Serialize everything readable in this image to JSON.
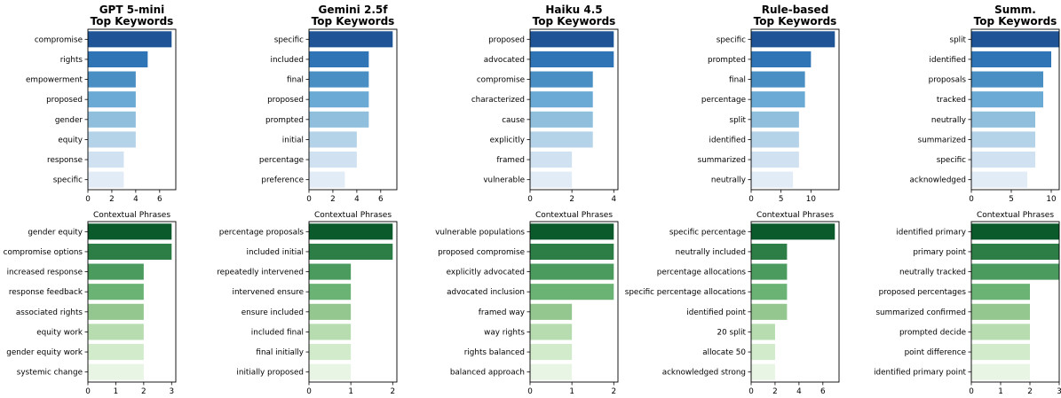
{
  "chart_data": [
    {
      "type": "bar",
      "orientation": "horizontal",
      "title": "GPT 5-mini\nTop Keywords",
      "palette": "blues",
      "categories": [
        "compromise",
        "rights",
        "empowerment",
        "proposed",
        "gender",
        "equity",
        "response",
        "specific"
      ],
      "values": [
        7,
        5,
        4,
        4,
        4,
        4,
        3,
        3
      ],
      "xlim": [
        0,
        7.35
      ],
      "xticks": [
        0,
        2,
        4,
        6
      ],
      "colors": [
        "#1f5597",
        "#2f74b5",
        "#4a8fc4",
        "#6aaad4",
        "#8fbfdd",
        "#b4d3e8",
        "#d0e1f2",
        "#e2ecf7"
      ]
    },
    {
      "type": "bar",
      "orientation": "horizontal",
      "title": "Gemini 2.5f\nTop Keywords",
      "palette": "blues",
      "categories": [
        "specific",
        "included",
        "final",
        "proposed",
        "prompted",
        "initial",
        "percentage",
        "preference"
      ],
      "values": [
        7,
        5,
        5,
        5,
        5,
        4,
        4,
        3
      ],
      "xlim": [
        0,
        7.35
      ],
      "xticks": [
        0,
        2,
        4,
        6
      ],
      "colors": [
        "#1f5597",
        "#2f74b5",
        "#4a8fc4",
        "#6aaad4",
        "#8fbfdd",
        "#b4d3e8",
        "#d0e1f2",
        "#e2ecf7"
      ]
    },
    {
      "type": "bar",
      "orientation": "horizontal",
      "title": "Haiku 4.5\nTop Keywords",
      "palette": "blues",
      "categories": [
        "proposed",
        "advocated",
        "compromise",
        "characterized",
        "cause",
        "explicitly",
        "framed",
        "vulnerable"
      ],
      "values": [
        4,
        4,
        3,
        3,
        3,
        3,
        2,
        2
      ],
      "xlim": [
        0,
        4.2
      ],
      "xticks": [
        0,
        2,
        4
      ],
      "colors": [
        "#1f5597",
        "#2f74b5",
        "#4a8fc4",
        "#6aaad4",
        "#8fbfdd",
        "#b4d3e8",
        "#d0e1f2",
        "#e2ecf7"
      ]
    },
    {
      "type": "bar",
      "orientation": "horizontal",
      "title": "Rule-based\nTop Keywords",
      "palette": "blues",
      "categories": [
        "specific",
        "prompted",
        "final",
        "percentage",
        "split",
        "identified",
        "summarized",
        "neutrally"
      ],
      "values": [
        14,
        10,
        9,
        9,
        8,
        8,
        8,
        7
      ],
      "xlim": [
        0,
        14.7
      ],
      "xticks": [
        0,
        5,
        10
      ],
      "colors": [
        "#1f5597",
        "#2f74b5",
        "#4a8fc4",
        "#6aaad4",
        "#8fbfdd",
        "#b4d3e8",
        "#d0e1f2",
        "#e2ecf7"
      ]
    },
    {
      "type": "bar",
      "orientation": "horizontal",
      "title": "Summ.\nTop Keywords",
      "palette": "blues",
      "categories": [
        "split",
        "identified",
        "proposals",
        "tracked",
        "neutrally",
        "summarized",
        "specific",
        "acknowledged"
      ],
      "values": [
        11,
        10,
        9,
        9,
        8,
        8,
        8,
        7
      ],
      "xlim": [
        0,
        11
      ],
      "xticks": [
        0,
        5,
        10
      ],
      "colors": [
        "#1f5597",
        "#2f74b5",
        "#4a8fc4",
        "#6aaad4",
        "#8fbfdd",
        "#b4d3e8",
        "#d0e1f2",
        "#e2ecf7"
      ]
    },
    {
      "type": "bar",
      "orientation": "horizontal",
      "title": "Contextual Phrases",
      "palette": "greens",
      "categories": [
        "gender equity",
        "compromise options",
        "increased response",
        "response feedback",
        "associated rights",
        "equity work",
        "gender equity work",
        "systemic change"
      ],
      "values": [
        3,
        3,
        2,
        2,
        2,
        2,
        2,
        2
      ],
      "xlim": [
        0,
        3.15
      ],
      "xticks": [
        0,
        1,
        2,
        3
      ],
      "colors": [
        "#0b5a2b",
        "#2d7d46",
        "#4a9b5d",
        "#6bb374",
        "#93c78f",
        "#b6dcaf",
        "#d2ebcb",
        "#e8f5e4"
      ]
    },
    {
      "type": "bar",
      "orientation": "horizontal",
      "title": "Contextual Phrases",
      "palette": "greens",
      "categories": [
        "percentage proposals",
        "included initial",
        "repeatedly intervened",
        "intervened ensure",
        "ensure included",
        "included final",
        "final initially",
        "initially proposed"
      ],
      "values": [
        2,
        2,
        1,
        1,
        1,
        1,
        1,
        1
      ],
      "xlim": [
        0,
        2.1
      ],
      "xticks": [
        0,
        1,
        2
      ],
      "colors": [
        "#0b5a2b",
        "#2d7d46",
        "#4a9b5d",
        "#6bb374",
        "#93c78f",
        "#b6dcaf",
        "#d2ebcb",
        "#e8f5e4"
      ]
    },
    {
      "type": "bar",
      "orientation": "horizontal",
      "title": "Contextual Phrases",
      "palette": "greens",
      "categories": [
        "vulnerable populations",
        "proposed compromise",
        "explicitly advocated",
        "advocated inclusion",
        "framed way",
        "way rights",
        "rights balanced",
        "balanced approach"
      ],
      "values": [
        2,
        2,
        2,
        2,
        1,
        1,
        1,
        1
      ],
      "xlim": [
        0,
        2.1
      ],
      "xticks": [
        0,
        1,
        2
      ],
      "colors": [
        "#0b5a2b",
        "#2d7d46",
        "#4a9b5d",
        "#6bb374",
        "#93c78f",
        "#b6dcaf",
        "#d2ebcb",
        "#e8f5e4"
      ]
    },
    {
      "type": "bar",
      "orientation": "horizontal",
      "title": "Contextual Phrases",
      "palette": "greens",
      "categories": [
        "specific percentage",
        "neutrally included",
        "percentage allocations",
        "specific percentage allocations",
        "identified point",
        "20 split",
        "allocate 50",
        "acknowledged strong"
      ],
      "values": [
        7,
        3,
        3,
        3,
        3,
        2,
        2,
        2
      ],
      "xlim": [
        0,
        7.35
      ],
      "xticks": [
        0,
        2,
        4,
        6
      ],
      "colors": [
        "#0b5a2b",
        "#2d7d46",
        "#4a9b5d",
        "#6bb374",
        "#93c78f",
        "#b6dcaf",
        "#d2ebcb",
        "#e8f5e4"
      ]
    },
    {
      "type": "bar",
      "orientation": "horizontal",
      "title": "Contextual Phrases",
      "palette": "greens",
      "categories": [
        "identified primary",
        "primary point",
        "neutrally tracked",
        "proposed percentages",
        "summarized confirmed",
        "prompted decide",
        "point difference",
        "identified primary point"
      ],
      "values": [
        3,
        3,
        3,
        2,
        2,
        2,
        2,
        2
      ],
      "xlim": [
        0,
        3
      ],
      "xticks": [
        0,
        1,
        2,
        3
      ],
      "colors": [
        "#0b5a2b",
        "#2d7d46",
        "#4a9b5d",
        "#6bb374",
        "#93c78f",
        "#b6dcaf",
        "#d2ebcb",
        "#e8f5e4"
      ]
    }
  ]
}
